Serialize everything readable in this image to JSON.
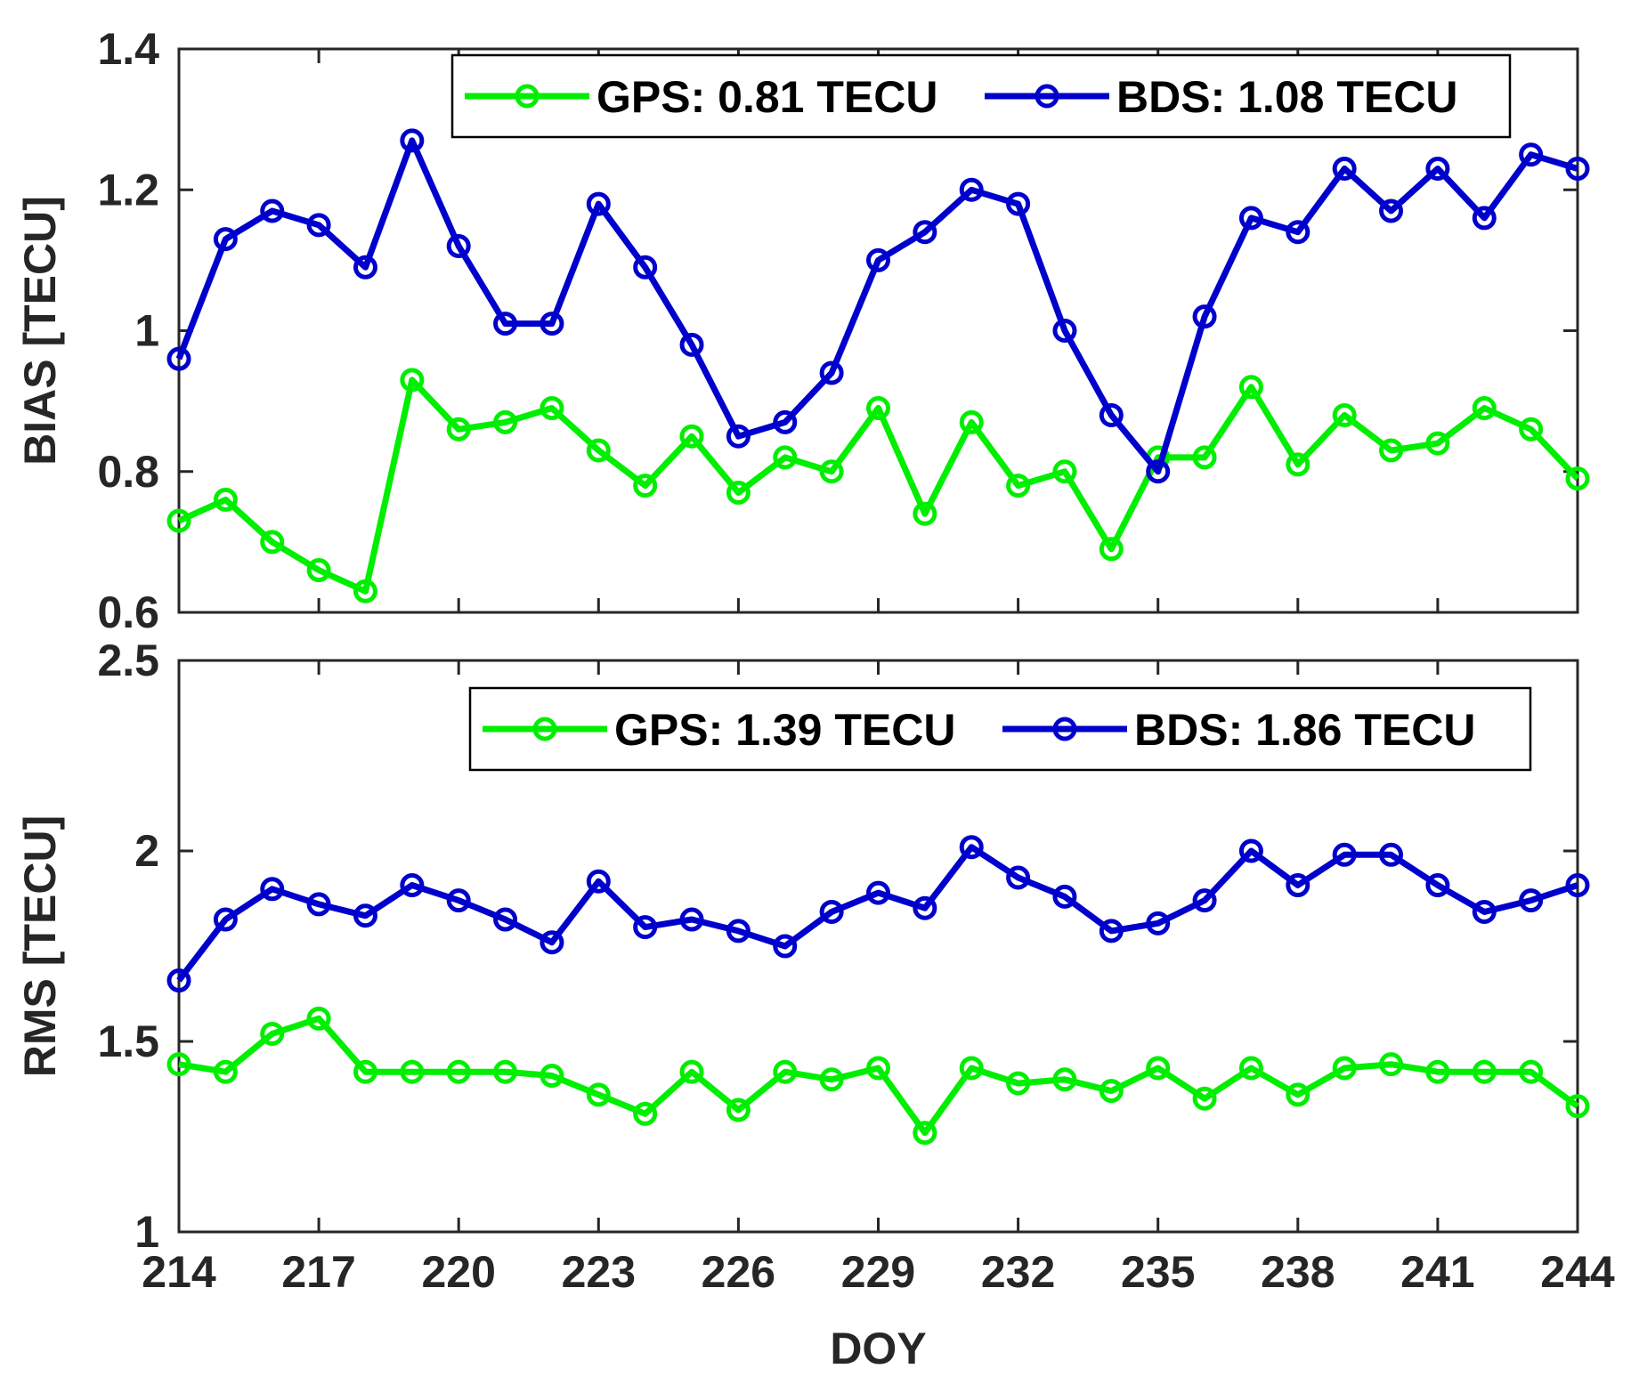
{
  "colors": {
    "gps": "#00ee00",
    "bds": "#0000cc",
    "axis": "#262626",
    "background": "#ffffff"
  },
  "chart_data": [
    {
      "type": "line",
      "xlabel": "",
      "ylabel": "BIAS [TECU]",
      "xlim": [
        214,
        244
      ],
      "ylim": [
        0.6,
        1.4
      ],
      "xticks": [
        214,
        217,
        220,
        223,
        226,
        229,
        232,
        235,
        238,
        241,
        244
      ],
      "yticks": [
        0.6,
        0.8,
        1.0,
        1.2,
        1.4
      ],
      "ytick_labels": [
        "0.6",
        "0.8",
        "1",
        "1.2",
        "1.4"
      ],
      "legend_position": "top-right",
      "x": [
        214,
        215,
        216,
        217,
        218,
        219,
        220,
        221,
        222,
        223,
        224,
        225,
        226,
        227,
        228,
        229,
        230,
        231,
        232,
        233,
        234,
        235,
        236,
        237,
        238,
        239,
        240,
        241,
        242,
        243,
        244
      ],
      "series": [
        {
          "name": "GPS",
          "legend": "GPS: 0.81 TECU",
          "color": "#00ee00",
          "values": [
            0.73,
            0.76,
            0.7,
            0.66,
            0.63,
            0.93,
            0.86,
            0.87,
            0.89,
            0.83,
            0.78,
            0.85,
            0.77,
            0.82,
            0.8,
            0.89,
            0.74,
            0.87,
            0.78,
            0.8,
            0.69,
            0.82,
            0.82,
            0.92,
            0.81,
            0.88,
            0.83,
            0.84,
            0.89,
            0.86,
            0.79
          ]
        },
        {
          "name": "BDS",
          "legend": "BDS: 1.08 TECU",
          "color": "#0000cc",
          "values": [
            0.96,
            1.13,
            1.17,
            1.15,
            1.09,
            1.27,
            1.12,
            1.01,
            1.01,
            1.18,
            1.09,
            0.98,
            0.85,
            0.87,
            0.94,
            1.1,
            1.14,
            1.2,
            1.18,
            1.0,
            0.88,
            0.8,
            1.02,
            1.16,
            1.14,
            1.23,
            1.17,
            1.23,
            1.16,
            1.25,
            1.23
          ]
        }
      ]
    },
    {
      "type": "line",
      "xlabel": "DOY",
      "ylabel": "RMS [TECU]",
      "xlim": [
        214,
        244
      ],
      "ylim": [
        1.0,
        2.5
      ],
      "xticks": [
        214,
        217,
        220,
        223,
        226,
        229,
        232,
        235,
        238,
        241,
        244
      ],
      "xtick_labels": [
        "214",
        "217",
        "220",
        "223",
        "226",
        "229",
        "232",
        "235",
        "238",
        "241",
        "244"
      ],
      "yticks": [
        1.0,
        1.5,
        2.0,
        2.5
      ],
      "ytick_labels": [
        "1",
        "1.5",
        "2",
        "2.5"
      ],
      "legend_position": "top-right",
      "x": [
        214,
        215,
        216,
        217,
        218,
        219,
        220,
        221,
        222,
        223,
        224,
        225,
        226,
        227,
        228,
        229,
        230,
        231,
        232,
        233,
        234,
        235,
        236,
        237,
        238,
        239,
        240,
        241,
        242,
        243,
        244
      ],
      "series": [
        {
          "name": "GPS",
          "legend": "GPS: 1.39 TECU",
          "color": "#00ee00",
          "values": [
            1.44,
            1.42,
            1.52,
            1.56,
            1.42,
            1.42,
            1.42,
            1.42,
            1.41,
            1.36,
            1.31,
            1.42,
            1.32,
            1.42,
            1.4,
            1.43,
            1.26,
            1.43,
            1.39,
            1.4,
            1.37,
            1.43,
            1.35,
            1.43,
            1.36,
            1.43,
            1.44,
            1.42,
            1.42,
            1.42,
            1.33
          ]
        },
        {
          "name": "BDS",
          "legend": "BDS: 1.86 TECU",
          "color": "#0000cc",
          "values": [
            1.66,
            1.82,
            1.9,
            1.86,
            1.83,
            1.91,
            1.87,
            1.82,
            1.76,
            1.92,
            1.8,
            1.82,
            1.79,
            1.75,
            1.84,
            1.89,
            1.85,
            2.01,
            1.93,
            1.88,
            1.79,
            1.81,
            1.87,
            2.0,
            1.91,
            1.99,
            1.99,
            1.91,
            1.84,
            1.87,
            1.91
          ]
        }
      ]
    }
  ]
}
